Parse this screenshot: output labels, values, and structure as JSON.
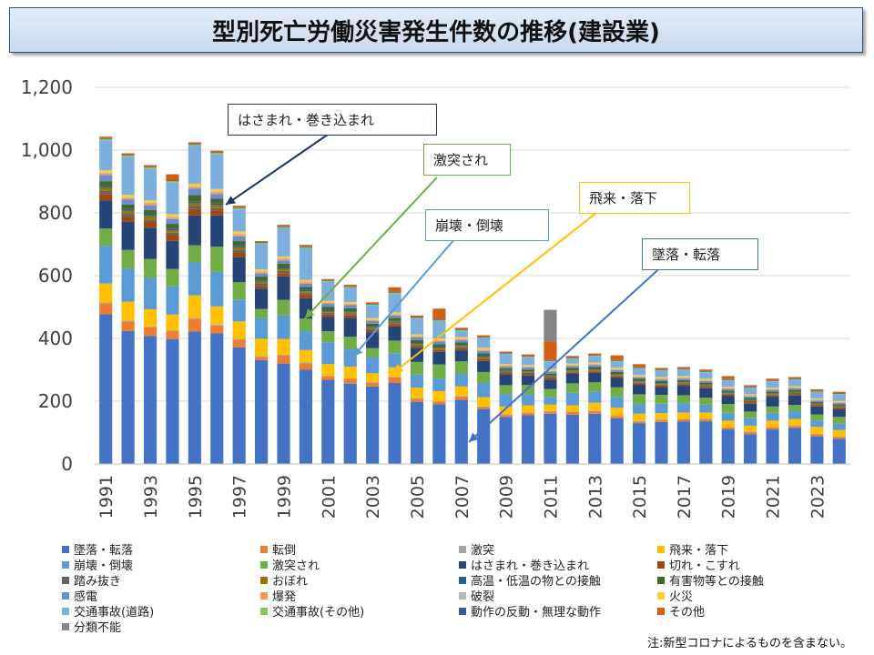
{
  "title": "型別死亡労働災害発生件数の推移(建設業)",
  "note": "注:新型コロナによるものを含まない。",
  "colors": {
    "墜落・転落": "#4472c4",
    "転倒": "#ed7d31",
    "激突": "#a5a5a5",
    "飛来・落下": "#ffc000",
    "崩壊・倒壊": "#5b9bd5",
    "激突され": "#70ad47",
    "はさまれ・巻き込まれ": "#264478",
    "切れ・こすれ": "#9e480e",
    "踏み抜き": "#636363",
    "おぼれ": "#997300",
    "高温・低温の物との接触": "#255e91",
    "有害物等との接触": "#43682b",
    "感電": "#698ed0",
    "爆発": "#f1975a",
    "破裂": "#b7b7b7",
    "火災": "#ffcd33",
    "交通事故(道路)": "#7cafdd",
    "交通事故(その他)": "#8cc168",
    "動作の反動・無理な動作": "#335aa1",
    "その他": "#d26012",
    "分類不能": "#848484"
  },
  "callouts": {
    "hasamare": "はさまれ・巻き込まれ",
    "gekitotsusare": "激突され",
    "houkai": "崩壊・倒壊",
    "hirai": "飛来・落下",
    "tsuiraku": "墜落・転落"
  },
  "chart_data": {
    "type": "bar",
    "stacked": true,
    "x": [
      1991,
      1992,
      1993,
      1994,
      1995,
      1996,
      1997,
      1998,
      1999,
      2000,
      2001,
      2002,
      2003,
      2004,
      2005,
      2006,
      2007,
      2008,
      2009,
      2010,
      2011,
      2012,
      2013,
      2014,
      2015,
      2016,
      2017,
      2018,
      2019,
      2020,
      2021,
      2022,
      2023,
      2024
    ],
    "x_tick_labels": [
      "1991",
      "1993",
      "1995",
      "1997",
      "1999",
      "2001",
      "2003",
      "2005",
      "2007",
      "2009",
      "2011",
      "2013",
      "2015",
      "2017",
      "2019",
      "2021",
      "2023"
    ],
    "ylim": [
      0,
      1200
    ],
    "y_ticks": [
      "0",
      "200",
      "400",
      "600",
      "800",
      "1,000",
      "1,200"
    ],
    "grid": true,
    "legend_position": "bottom",
    "series": [
      {
        "name": "墜落・転落",
        "values": [
          477,
          424,
          408,
          398,
          422,
          416,
          371,
          331,
          320,
          300,
          268,
          256,
          247,
          258,
          198,
          190,
          205,
          175,
          150,
          155,
          160,
          157,
          160,
          145,
          130,
          134,
          135,
          136,
          110,
          95,
          110,
          115,
          88,
          80
        ]
      },
      {
        "name": "転倒",
        "values": [
          35,
          30,
          27,
          25,
          40,
          25,
          25,
          10,
          25,
          20,
          11,
          15,
          12,
          18,
          10,
          8,
          10,
          6,
          6,
          8,
          7,
          8,
          8,
          8,
          5,
          6,
          7,
          6,
          6,
          7,
          6,
          6,
          6,
          6
        ]
      },
      {
        "name": "激突",
        "values": [
          3,
          3,
          3,
          3,
          3,
          3,
          3,
          3,
          3,
          3,
          2,
          2,
          2,
          2,
          2,
          2,
          2,
          2,
          2,
          2,
          2,
          2,
          2,
          2,
          2,
          2,
          2,
          2,
          2,
          2,
          2,
          2,
          2,
          2
        ]
      },
      {
        "name": "飛来・落下",
        "values": [
          60,
          60,
          55,
          50,
          72,
          58,
          55,
          55,
          50,
          40,
          37,
          37,
          28,
          30,
          33,
          32,
          30,
          30,
          25,
          22,
          20,
          20,
          25,
          24,
          23,
          20,
          20,
          20,
          20,
          18,
          20,
          20,
          22,
          20
        ]
      },
      {
        "name": "崩壊・倒壊",
        "values": [
          120,
          105,
          100,
          90,
          105,
          110,
          70,
          65,
          75,
          60,
          70,
          55,
          50,
          45,
          42,
          40,
          40,
          45,
          40,
          35,
          25,
          40,
          35,
          35,
          30,
          30,
          30,
          25,
          25,
          25,
          25,
          25,
          20,
          20
        ]
      },
      {
        "name": "激突され",
        "values": [
          55,
          60,
          60,
          55,
          55,
          80,
          55,
          30,
          50,
          40,
          35,
          40,
          30,
          40,
          40,
          45,
          40,
          35,
          28,
          30,
          25,
          30,
          30,
          30,
          32,
          28,
          25,
          22,
          28,
          20,
          20,
          20,
          20,
          22
        ]
      },
      {
        "name": "はさまれ・巻き込まれ",
        "values": [
          90,
          90,
          100,
          90,
          95,
          100,
          80,
          65,
          75,
          65,
          45,
          60,
          50,
          45,
          45,
          40,
          35,
          35,
          35,
          30,
          30,
          30,
          30,
          30,
          30,
          25,
          30,
          30,
          25,
          25,
          30,
          30,
          25,
          25
        ]
      },
      {
        "name": "切れ・こすれ",
        "values": [
          20,
          15,
          18,
          18,
          20,
          15,
          15,
          8,
          10,
          10,
          8,
          8,
          7,
          6,
          6,
          6,
          6,
          6,
          5,
          5,
          5,
          5,
          5,
          5,
          5,
          5,
          5,
          5,
          5,
          5,
          5,
          5,
          5,
          5
        ]
      },
      {
        "name": "踏み抜き",
        "values": [
          10,
          10,
          8,
          8,
          10,
          8,
          8,
          7,
          7,
          6,
          6,
          5,
          5,
          5,
          4,
          4,
          4,
          4,
          3,
          3,
          3,
          3,
          3,
          3,
          3,
          3,
          3,
          3,
          3,
          3,
          3,
          3,
          2,
          2
        ]
      },
      {
        "name": "おぼれ",
        "values": [
          10,
          10,
          10,
          8,
          10,
          10,
          8,
          7,
          7,
          6,
          5,
          5,
          5,
          5,
          4,
          4,
          4,
          4,
          3,
          3,
          3,
          3,
          3,
          3,
          3,
          3,
          3,
          3,
          3,
          3,
          3,
          3,
          2,
          2
        ]
      },
      {
        "name": "高温・低温の物との接触",
        "values": [
          5,
          5,
          5,
          5,
          5,
          5,
          5,
          4,
          4,
          4,
          3,
          3,
          3,
          3,
          3,
          3,
          3,
          3,
          2,
          2,
          2,
          2,
          2,
          2,
          2,
          2,
          2,
          2,
          2,
          2,
          2,
          2,
          2,
          2
        ]
      },
      {
        "name": "有害物等との接触",
        "values": [
          15,
          15,
          15,
          15,
          20,
          15,
          15,
          12,
          12,
          10,
          10,
          10,
          8,
          8,
          8,
          8,
          8,
          8,
          6,
          6,
          6,
          6,
          6,
          6,
          6,
          6,
          5,
          5,
          5,
          5,
          5,
          5,
          4,
          4
        ]
      },
      {
        "name": "感電",
        "values": [
          20,
          15,
          15,
          15,
          20,
          15,
          15,
          10,
          10,
          10,
          10,
          10,
          8,
          8,
          8,
          8,
          7,
          7,
          6,
          6,
          6,
          6,
          6,
          6,
          5,
          5,
          5,
          5,
          5,
          5,
          5,
          5,
          4,
          4
        ]
      },
      {
        "name": "爆発",
        "values": [
          5,
          5,
          5,
          5,
          5,
          5,
          5,
          4,
          4,
          4,
          3,
          3,
          3,
          3,
          3,
          3,
          3,
          3,
          2,
          2,
          2,
          2,
          2,
          2,
          2,
          2,
          2,
          2,
          2,
          2,
          2,
          2,
          2,
          2
        ]
      },
      {
        "name": "破裂",
        "values": [
          3,
          3,
          3,
          3,
          3,
          3,
          3,
          3,
          3,
          3,
          2,
          2,
          2,
          2,
          2,
          2,
          2,
          2,
          2,
          2,
          2,
          2,
          2,
          2,
          2,
          2,
          2,
          2,
          2,
          2,
          2,
          2,
          2,
          2
        ]
      },
      {
        "name": "火災",
        "values": [
          8,
          8,
          8,
          8,
          8,
          8,
          8,
          6,
          6,
          6,
          5,
          5,
          5,
          5,
          5,
          5,
          5,
          5,
          4,
          4,
          4,
          4,
          4,
          4,
          4,
          4,
          4,
          4,
          3,
          3,
          3,
          3,
          3,
          3
        ]
      },
      {
        "name": "交通事故(道路)",
        "values": [
          95,
          120,
          100,
          100,
          120,
          110,
          70,
          80,
          90,
          100,
          60,
          45,
          40,
          60,
          50,
          55,
          20,
          30,
          30,
          25,
          25,
          15,
          20,
          20,
          20,
          20,
          20,
          20,
          20,
          20,
          20,
          20,
          20,
          20
        ]
      },
      {
        "name": "交通事故(その他)",
        "values": [
          5,
          5,
          5,
          5,
          5,
          5,
          5,
          4,
          4,
          4,
          3,
          3,
          3,
          3,
          3,
          3,
          3,
          3,
          2,
          2,
          2,
          2,
          2,
          2,
          2,
          2,
          2,
          2,
          2,
          2,
          2,
          2,
          2,
          2
        ]
      },
      {
        "name": "動作の反動・無理な動作",
        "values": [
          2,
          2,
          2,
          2,
          2,
          2,
          2,
          2,
          2,
          2,
          2,
          2,
          2,
          2,
          2,
          2,
          2,
          2,
          2,
          2,
          2,
          2,
          2,
          2,
          2,
          2,
          2,
          2,
          2,
          2,
          2,
          2,
          2,
          2
        ]
      },
      {
        "name": "その他",
        "values": [
          5,
          5,
          5,
          20,
          5,
          5,
          5,
          4,
          5,
          5,
          4,
          5,
          5,
          15,
          5,
          35,
          5,
          5,
          5,
          5,
          60,
          5,
          5,
          15,
          10,
          5,
          5,
          5,
          10,
          5,
          5,
          5,
          5,
          5
        ]
      },
      {
        "name": "分類不能",
        "values": [
          0,
          0,
          0,
          0,
          0,
          0,
          0,
          0,
          0,
          0,
          0,
          0,
          0,
          0,
          0,
          0,
          0,
          0,
          0,
          0,
          100,
          0,
          0,
          0,
          0,
          0,
          0,
          0,
          0,
          0,
          0,
          0,
          0,
          0
        ]
      }
    ]
  }
}
